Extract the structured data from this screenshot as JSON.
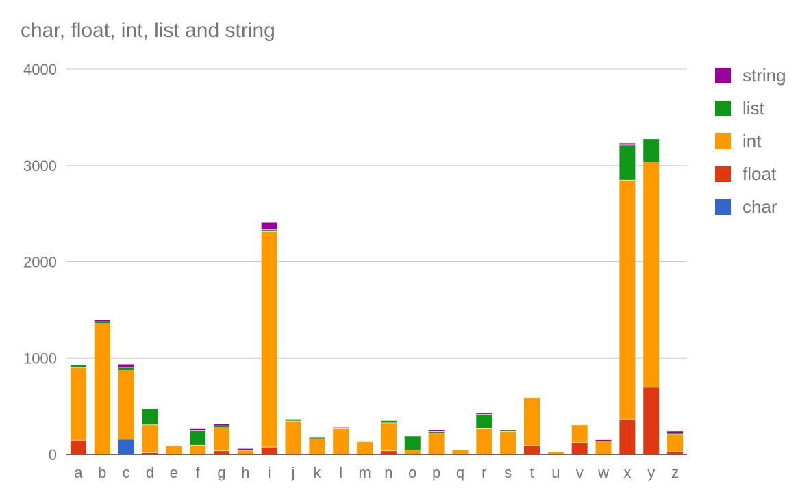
{
  "chart_data": {
    "type": "bar",
    "stacked": true,
    "title": "char, float, int, list and string",
    "xlabel": "",
    "ylabel": "",
    "ylim": [
      0,
      4000
    ],
    "yticks": [
      "0",
      "1000",
      "2000",
      "3000",
      "4000"
    ],
    "grid": true,
    "legend_position": "right",
    "categories": [
      "a",
      "b",
      "c",
      "d",
      "e",
      "f",
      "g",
      "h",
      "i",
      "j",
      "k",
      "l",
      "m",
      "n",
      "o",
      "p",
      "q",
      "r",
      "s",
      "t",
      "u",
      "v",
      "w",
      "x",
      "y",
      "z"
    ],
    "series": [
      {
        "name": "char",
        "color": "#3366cc",
        "values": [
          0,
          0,
          160,
          0,
          0,
          0,
          0,
          0,
          0,
          0,
          0,
          0,
          0,
          0,
          0,
          0,
          0,
          0,
          0,
          0,
          0,
          0,
          0,
          0,
          0,
          0
        ]
      },
      {
        "name": "float",
        "color": "#dc3912",
        "values": [
          150,
          0,
          0,
          20,
          0,
          0,
          40,
          0,
          80,
          0,
          0,
          0,
          0,
          40,
          0,
          0,
          0,
          0,
          0,
          95,
          0,
          125,
          0,
          370,
          700,
          30
        ]
      },
      {
        "name": "int",
        "color": "#ff9900",
        "values": [
          755,
          1360,
          720,
          290,
          95,
          100,
          240,
          45,
          2235,
          350,
          165,
          270,
          135,
          290,
          50,
          225,
          50,
          270,
          240,
          500,
          30,
          185,
          140,
          2480,
          2340,
          180
        ]
      },
      {
        "name": "list",
        "color": "#109618",
        "values": [
          25,
          20,
          25,
          170,
          0,
          150,
          20,
          0,
          20,
          20,
          15,
          0,
          0,
          25,
          145,
          15,
          0,
          150,
          15,
          0,
          0,
          0,
          0,
          365,
          240,
          15
        ]
      },
      {
        "name": "string",
        "color": "#990099",
        "values": [
          0,
          20,
          35,
          0,
          0,
          20,
          20,
          20,
          75,
          0,
          0,
          15,
          0,
          0,
          0,
          20,
          0,
          15,
          0,
          0,
          0,
          0,
          15,
          20,
          0,
          20
        ]
      }
    ]
  }
}
